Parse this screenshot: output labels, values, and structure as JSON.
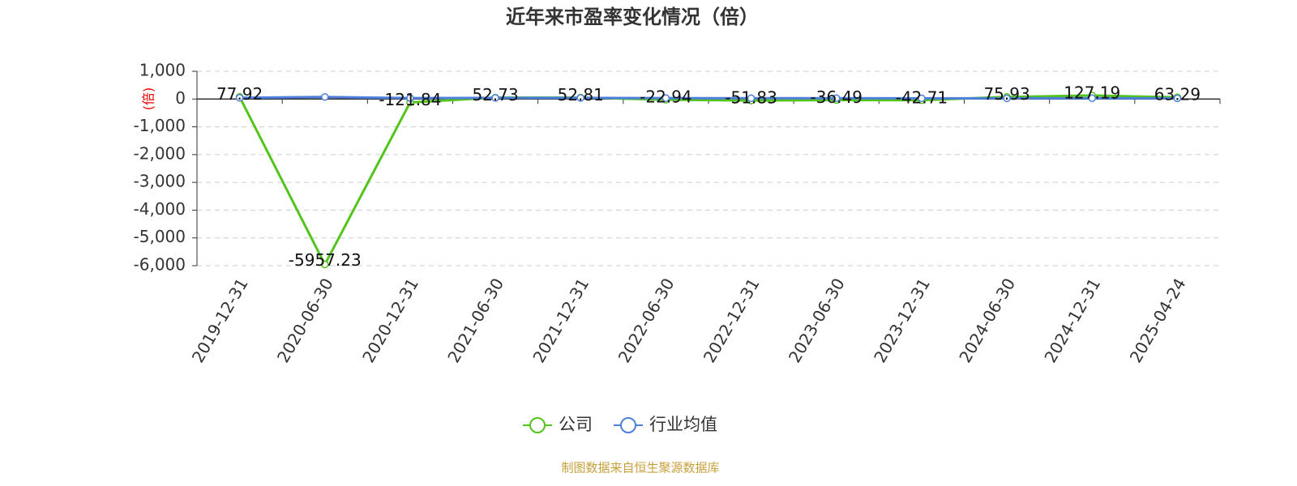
{
  "chart_data": {
    "type": "line",
    "title": "近年来市盈率变化情况（倍）",
    "y_label": "(倍)",
    "categories": [
      "2019-12-31",
      "2020-06-30",
      "2020-12-31",
      "2021-06-30",
      "2021-12-31",
      "2022-06-30",
      "2022-12-31",
      "2023-06-30",
      "2023-12-31",
      "2024-06-30",
      "2024-12-31",
      "2025-04-24"
    ],
    "series": [
      {
        "name": "公司",
        "color": "#52c41a",
        "values": [
          77.92,
          -5957.23,
          -121.84,
          52.73,
          52.81,
          -22.94,
          -51.83,
          -36.49,
          -42.71,
          75.93,
          127.19,
          63.29
        ]
      },
      {
        "name": "行业均值",
        "color": "#4e7fdc",
        "values": [
          45,
          75,
          35,
          40,
          40,
          35,
          30,
          30,
          28,
          25,
          30,
          25
        ]
      }
    ],
    "ylim": [
      -6000,
      1000
    ],
    "yticks": [
      {
        "value": 1000,
        "label": "1,000"
      },
      0,
      {
        "value": -1000,
        "label": "-1,000"
      },
      {
        "value": -2000,
        "label": "-2,000"
      },
      {
        "value": -3000,
        "label": "-3,000"
      },
      {
        "value": -4000,
        "label": "-4,000"
      },
      {
        "value": -5000,
        "label": "-5,000"
      },
      {
        "value": -6000,
        "label": "-6,000"
      }
    ],
    "grid": true,
    "source": "制图数据来自恒生聚源数据库"
  }
}
